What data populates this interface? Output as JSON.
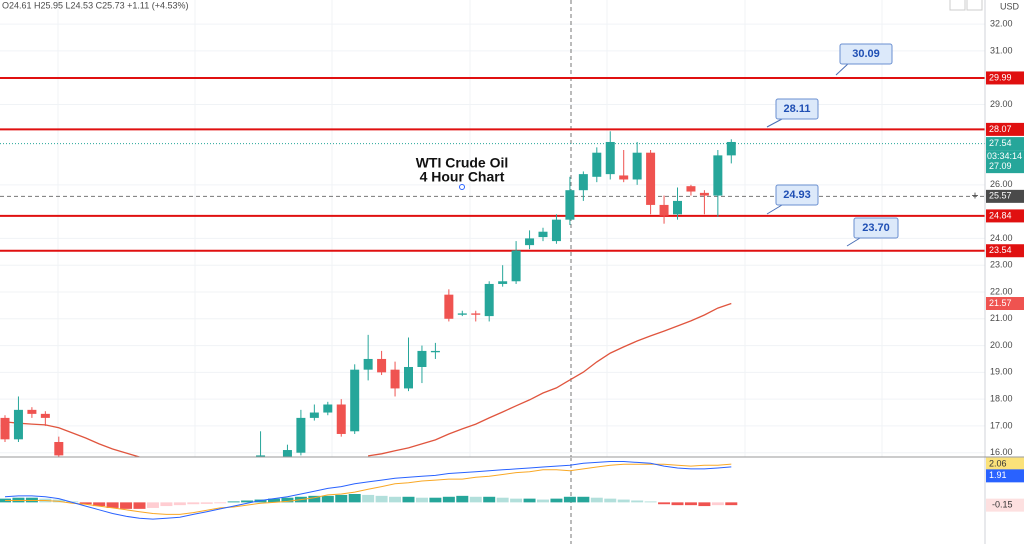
{
  "header": {
    "ohlc": "O24.61 H25.95 L24.53 C25.73 +1.11 (+4.53%)",
    "currency": "USD"
  },
  "chart_data": [
    {
      "type": "candlestick",
      "annotation": [
        "WTI Crude Oil",
        "4 Hour Chart"
      ],
      "categories": [
        null,
        null,
        null,
        null,
        null,
        null,
        null,
        null,
        null,
        null,
        null,
        null,
        null,
        null,
        null,
        null,
        null,
        null,
        null,
        null,
        null,
        null,
        null,
        null,
        null,
        null,
        null,
        null,
        null,
        null,
        null,
        null,
        null,
        null,
        null,
        null,
        null,
        null,
        null,
        null,
        null,
        null,
        null,
        null,
        null,
        null,
        null,
        null,
        null,
        null,
        null,
        null,
        null,
        null,
        null
      ],
      "open": [
        17.3,
        16.5,
        17.6,
        17.45,
        16.4,
        null,
        null,
        null,
        null,
        null,
        null,
        null,
        null,
        null,
        null,
        null,
        null,
        null,
        null,
        15.7,
        null,
        15.8,
        16.0,
        17.3,
        17.5,
        17.8,
        16.8,
        19.1,
        19.5,
        19.1,
        18.4,
        19.2,
        19.75,
        21.9,
        21.15,
        21.2,
        21.1,
        22.3,
        22.4,
        23.75,
        24.05,
        23.9,
        24.7,
        25.8,
        26.3,
        26.4,
        26.35,
        26.2,
        27.2,
        25.25,
        24.9,
        25.95,
        25.7,
        25.6,
        27.1
      ],
      "high": [
        17.4,
        18.1,
        17.7,
        17.55,
        16.6,
        null,
        null,
        null,
        null,
        null,
        null,
        null,
        null,
        null,
        null,
        null,
        null,
        null,
        null,
        16.8,
        null,
        16.3,
        17.6,
        17.8,
        17.9,
        18.0,
        19.3,
        20.4,
        19.8,
        19.4,
        20.3,
        20.0,
        20.1,
        22.1,
        21.3,
        21.3,
        22.4,
        23.0,
        23.9,
        24.3,
        24.4,
        24.9,
        26.3,
        26.5,
        27.4,
        28.0,
        27.3,
        27.6,
        27.3,
        25.6,
        25.9,
        26.0,
        25.8,
        27.3,
        27.7
      ],
      "low": [
        16.4,
        16.4,
        17.3,
        17.0,
        15.7,
        null,
        null,
        null,
        null,
        null,
        null,
        null,
        null,
        null,
        null,
        null,
        null,
        null,
        null,
        15.5,
        null,
        15.6,
        15.9,
        17.2,
        17.4,
        16.6,
        16.7,
        18.7,
        18.9,
        18.1,
        18.3,
        18.6,
        19.5,
        20.9,
        21.1,
        20.9,
        20.9,
        22.2,
        22.3,
        23.6,
        23.9,
        23.8,
        24.5,
        25.4,
        26.1,
        26.2,
        26.1,
        26.0,
        24.9,
        24.55,
        24.7,
        25.6,
        24.9,
        24.8,
        26.8
      ],
      "close": [
        16.5,
        17.6,
        17.45,
        17.3,
        15.9,
        null,
        null,
        null,
        null,
        null,
        null,
        null,
        null,
        null,
        null,
        null,
        null,
        null,
        null,
        15.9,
        null,
        16.1,
        17.3,
        17.5,
        17.8,
        16.7,
        19.1,
        19.5,
        19.0,
        18.4,
        19.2,
        19.8,
        19.8,
        21.0,
        21.2,
        21.15,
        22.3,
        22.4,
        23.55,
        24.0,
        24.25,
        24.7,
        25.8,
        26.4,
        27.2,
        27.6,
        26.2,
        27.2,
        25.25,
        24.85,
        25.4,
        25.75,
        25.6,
        27.1,
        27.6
      ],
      "up_color": "#26a69a",
      "down_color": "#ef5350",
      "moving_average": {
        "color": "#e0553e",
        "values": [
          17.15,
          17.1,
          17.07,
          17.04,
          16.93,
          16.74,
          16.55,
          16.33,
          16.14,
          15.99,
          15.84,
          null,
          null,
          null,
          null,
          null,
          null,
          null,
          null,
          null,
          null,
          null,
          null,
          null,
          null,
          null,
          null,
          15.88,
          15.96,
          16.07,
          16.18,
          16.33,
          16.48,
          16.7,
          16.89,
          17.07,
          17.3,
          17.52,
          17.75,
          17.97,
          18.23,
          18.42,
          18.72,
          19.01,
          19.39,
          19.72,
          19.95,
          20.17,
          20.36,
          20.54,
          20.73,
          20.92,
          21.14,
          21.4,
          21.57
        ]
      },
      "ylim": [
        15.84,
        32.9
      ],
      "yticks": [
        {
          "value": 16,
          "label": "16.00"
        },
        {
          "value": 17,
          "label": "17.00"
        },
        {
          "value": 18,
          "label": "18.00"
        },
        {
          "value": 19,
          "label": "19.00"
        },
        {
          "value": 20,
          "label": "20.00"
        },
        {
          "value": 21,
          "label": "21.00"
        },
        {
          "value": 22,
          "label": "22.00"
        },
        {
          "value": 23,
          "label": "23.00"
        },
        {
          "value": 24,
          "label": "24.00"
        },
        {
          "value": 26,
          "label": "26.00"
        },
        {
          "value": 29,
          "label": "29.00"
        },
        {
          "value": 31,
          "label": "31.00"
        },
        {
          "value": 32,
          "label": "32.00"
        }
      ],
      "grid": true,
      "levels": [
        {
          "value": 29.99,
          "callout": {
            "value": 30.09,
            "label": "30.09"
          }
        },
        {
          "value": 28.07,
          "callout": {
            "value": 28.11,
            "label": "28.11"
          }
        },
        {
          "value": 24.84,
          "callout": {
            "value": 24.93,
            "label": "24.93"
          }
        },
        {
          "value": 23.54,
          "callout": {
            "value": 23.7,
            "label": "23.70"
          }
        }
      ],
      "level_color": "#e01010",
      "current_price": 27.54,
      "countdown": "03:34:14",
      "reference_price": 27.09,
      "crosshair_price": 25.57
    },
    {
      "type": "macd",
      "histogram": [
        0.2,
        0.25,
        0.25,
        0.2,
        0.15,
        0.05,
        -0.1,
        -0.2,
        -0.3,
        -0.35,
        -0.35,
        -0.3,
        -0.2,
        -0.15,
        -0.1,
        -0.08,
        -0.05,
        0.05,
        0.1,
        0.15,
        0.2,
        0.25,
        0.3,
        0.35,
        0.35,
        0.4,
        0.45,
        0.4,
        0.35,
        0.3,
        0.3,
        0.25,
        0.25,
        0.3,
        0.35,
        0.3,
        0.3,
        0.25,
        0.2,
        0.2,
        0.15,
        0.2,
        0.3,
        0.3,
        0.25,
        0.2,
        0.15,
        0.1,
        0.05,
        -0.1,
        -0.15,
        -0.15,
        -0.2,
        -0.15,
        -0.15
      ],
      "histogram_colors": [
        "#26a69a",
        "#b2dfdb",
        "#ef5350",
        "#ffcdd2"
      ],
      "macd": {
        "color": "#2962ff",
        "values": [
          0.3,
          0.35,
          0.35,
          0.3,
          0.2,
          0,
          -0.2,
          -0.4,
          -0.6,
          -0.75,
          -0.85,
          -0.9,
          -0.85,
          -0.8,
          -0.65,
          -0.5,
          -0.35,
          -0.2,
          -0.05,
          0.1,
          0.2,
          0.3,
          0.45,
          0.6,
          0.75,
          0.85,
          1.0,
          1.1,
          1.2,
          1.3,
          1.35,
          1.4,
          1.45,
          1.55,
          1.6,
          1.65,
          1.7,
          1.75,
          1.8,
          1.85,
          1.9,
          1.95,
          2.0,
          2.1,
          2.15,
          2.2,
          2.2,
          2.15,
          2.1,
          1.95,
          1.85,
          1.8,
          1.8,
          1.85,
          1.91
        ]
      },
      "signal": {
        "color": "#f9a825",
        "values": [
          0.1,
          0.1,
          0.1,
          0.1,
          0.05,
          -0.05,
          -0.1,
          -0.2,
          -0.3,
          -0.4,
          -0.5,
          -0.6,
          -0.65,
          -0.65,
          -0.55,
          -0.42,
          -0.3,
          -0.25,
          -0.15,
          -0.05,
          0,
          0.05,
          0.15,
          0.25,
          0.4,
          0.45,
          0.55,
          0.7,
          0.85,
          1.0,
          1.05,
          1.15,
          1.2,
          1.25,
          1.25,
          1.35,
          1.4,
          1.5,
          1.6,
          1.65,
          1.75,
          1.75,
          1.7,
          1.8,
          1.9,
          2.0,
          2.05,
          2.05,
          2.05,
          2.05,
          2.0,
          1.95,
          2.0,
          2.0,
          2.06
        ]
      },
      "ylim": [
        -2.24,
        2.44
      ]
    }
  ]
}
